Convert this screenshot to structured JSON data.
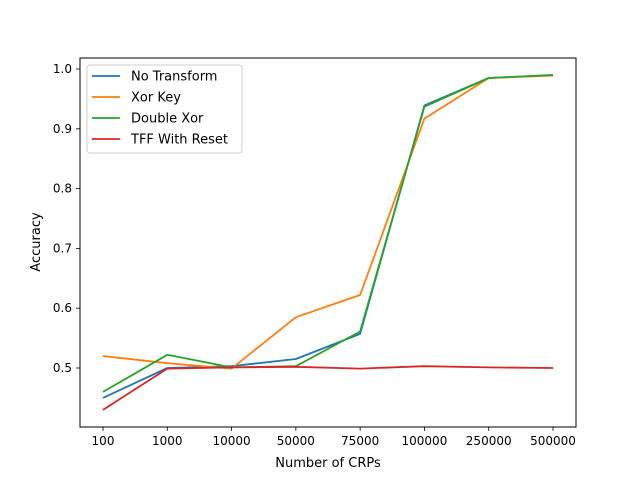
{
  "chart_data": {
    "type": "line",
    "title": "",
    "xlabel": "Number of CRPs",
    "ylabel": "Accuracy",
    "categories": [
      "100",
      "1000",
      "10000",
      "50000",
      "75000",
      "100000",
      "250000",
      "500000"
    ],
    "ylim": [
      0.4,
      1.0
    ],
    "yticks": [
      "0.5",
      "0.6",
      "0.7",
      "0.8",
      "0.9",
      "1.0"
    ],
    "grid": false,
    "legend_position": "top-left",
    "series": [
      {
        "name": "No Transform",
        "color": "#1f77b4",
        "values": [
          0.45,
          0.5,
          0.503,
          0.515,
          0.557,
          0.939,
          0.985,
          0.99
        ]
      },
      {
        "name": "Xor Key",
        "color": "#ff7f0e",
        "values": [
          0.52,
          0.508,
          0.499,
          0.585,
          0.622,
          0.917,
          0.985,
          0.989
        ]
      },
      {
        "name": "Double Xor",
        "color": "#2ca02c",
        "values": [
          0.46,
          0.522,
          0.501,
          0.503,
          0.561,
          0.937,
          0.985,
          0.99
        ]
      },
      {
        "name": "TFF With Reset",
        "color": "#d62728",
        "values": [
          0.43,
          0.499,
          0.501,
          0.502,
          0.499,
          0.503,
          0.501,
          0.5
        ]
      }
    ]
  }
}
